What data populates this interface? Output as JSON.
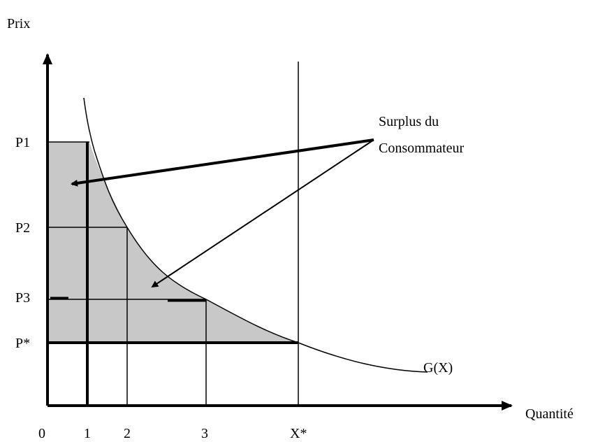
{
  "axes": {
    "y_label": "Prix",
    "x_label": "Quantité"
  },
  "price_labels": [
    "P1",
    "P2",
    "P3",
    "P*"
  ],
  "quantity_labels": [
    "0",
    "1",
    "2",
    "3",
    "X*"
  ],
  "annotation": {
    "line1": "Surplus du",
    "line2": "Consommateur"
  },
  "curve_label": "G(X)"
}
